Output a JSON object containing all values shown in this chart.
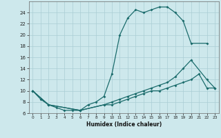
{
  "xlabel": "Humidex (Indice chaleur)",
  "bg_color": "#cde8ec",
  "grid_color": "#aacdd4",
  "line_color": "#1a6b6b",
  "xlim": [
    -0.5,
    23.5
  ],
  "ylim": [
    6,
    26
  ],
  "xticks": [
    0,
    1,
    2,
    3,
    4,
    5,
    6,
    7,
    8,
    9,
    10,
    11,
    12,
    13,
    14,
    15,
    16,
    17,
    18,
    19,
    20,
    21,
    22,
    23
  ],
  "yticks": [
    6,
    8,
    10,
    12,
    14,
    16,
    18,
    20,
    22,
    24
  ],
  "curve1_x": [
    0,
    1,
    2,
    3,
    4,
    5,
    6,
    7,
    8,
    9,
    10,
    11,
    12,
    13,
    14,
    15,
    16,
    17,
    18,
    19,
    20,
    22
  ],
  "curve1_y": [
    10,
    8.5,
    7.5,
    7,
    6.5,
    6.5,
    6.5,
    7.5,
    8,
    9,
    13,
    20,
    23,
    24.5,
    24,
    24.5,
    25,
    25,
    24,
    22.5,
    18.5,
    18.5
  ],
  "curve2_x": [
    0,
    2,
    6,
    9,
    10,
    11,
    12,
    13,
    14,
    15,
    16,
    17,
    18,
    19,
    20,
    22,
    23
  ],
  "curve2_y": [
    10,
    7.5,
    6.5,
    7.5,
    8,
    8.5,
    9,
    9.5,
    10,
    10.5,
    11,
    11.5,
    12.5,
    14,
    15.5,
    12,
    10.5
  ],
  "curve3_x": [
    0,
    2,
    6,
    9,
    10,
    11,
    12,
    13,
    14,
    15,
    16,
    17,
    18,
    19,
    20,
    21,
    22,
    23
  ],
  "curve3_y": [
    10,
    7.5,
    6.5,
    7.5,
    7.5,
    8,
    8.5,
    9,
    9.5,
    10,
    10,
    10.5,
    11,
    11.5,
    12,
    13,
    10.5,
    10.5
  ]
}
